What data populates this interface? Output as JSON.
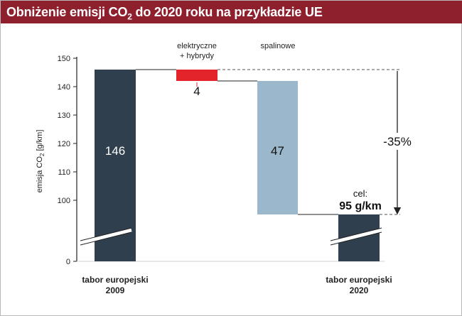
{
  "title": {
    "before": "Obniżenie emisji CO",
    "sub": "2",
    "after": " do 2020 roku na przykładzie UE"
  },
  "colors": {
    "title_bg": "#8e1f2c",
    "dark_bar": "#2f3f4e",
    "red_bar": "#e3252b",
    "blue_bar": "#9ab7cc"
  },
  "chart_data": {
    "type": "bar",
    "subtype": "waterfall",
    "ylabel_main": "emisja CO",
    "ylabel_sub": "2",
    "ylabel_unit": " [g/km]",
    "yticks": [
      0,
      100,
      110,
      120,
      130,
      140,
      150
    ],
    "axis_break": true,
    "ylim": [
      0,
      150
    ],
    "bars": [
      {
        "category": "tabor europejski 2009",
        "label_line1": "tabor europejski",
        "label_line2": "2009",
        "base": 0,
        "top": 146,
        "value_label": "146",
        "color": "#2f3f4e"
      },
      {
        "category": "elektryczne + hybrydy",
        "label_line1": "elektryczne",
        "label_line2": "+ hybrydy",
        "base": 142,
        "top": 146,
        "value_label": "4",
        "color": "#e3252b"
      },
      {
        "category": "spalinowe",
        "label_line1": "spalinowe",
        "label_line2": "",
        "base": 95,
        "top": 142,
        "value_label": "47",
        "color": "#9ab7cc"
      },
      {
        "category": "tabor europejski 2020",
        "label_line1": "tabor europejski",
        "label_line2": "2020",
        "base": 0,
        "top": 95,
        "value_label": "95 g/km",
        "value_prefix": "cel:",
        "color": "#2f3f4e"
      }
    ],
    "annotation": "-35%"
  }
}
